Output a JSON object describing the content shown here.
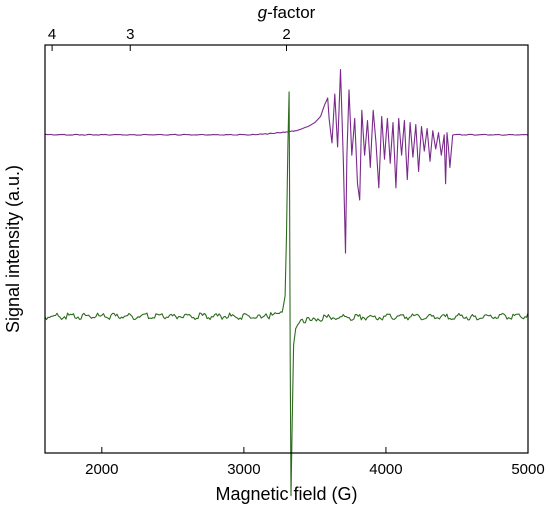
{
  "chart_data": {
    "type": "line",
    "xlabel": "Magnetic field (G)",
    "ylabel": "Signal intensity (a.u.)",
    "xlim": [
      1600,
      5000
    ],
    "x_ticks": [
      2000,
      3000,
      4000,
      5000
    ],
    "top_axis": {
      "title_italic": "g",
      "title_rest": "-factor",
      "ticks": [
        {
          "label": "4",
          "g": 4
        },
        {
          "label": "3",
          "g": 3
        },
        {
          "label": "2",
          "g": 2
        }
      ],
      "conversion_constant_G": 6600
    },
    "y_ticks_labeled": false,
    "grid": false,
    "series": [
      {
        "color": "#7a2a8c",
        "baseline": 0.78,
        "points": [
          [
            1600,
            0
          ],
          [
            3050,
            0
          ],
          [
            3150,
            0.002
          ],
          [
            3250,
            0.005
          ],
          [
            3300,
            0.006
          ],
          [
            3360,
            0.01
          ],
          [
            3400,
            0.014
          ],
          [
            3450,
            0.02
          ],
          [
            3500,
            0.03
          ],
          [
            3540,
            0.045
          ],
          [
            3570,
            0.075
          ],
          [
            3590,
            0.09
          ],
          [
            3600,
            0.04
          ],
          [
            3620,
            -0.02
          ],
          [
            3640,
            0.1
          ],
          [
            3660,
            -0.03
          ],
          [
            3680,
            0.16
          ],
          [
            3700,
            -0.06
          ],
          [
            3715,
            -0.29
          ],
          [
            3725,
            -0.05
          ],
          [
            3740,
            0.11
          ],
          [
            3760,
            -0.05
          ],
          [
            3780,
            0.04
          ],
          [
            3800,
            -0.12
          ],
          [
            3815,
            -0.16
          ],
          [
            3830,
            0.06
          ],
          [
            3850,
            -0.05
          ],
          [
            3870,
            0.035
          ],
          [
            3890,
            -0.08
          ],
          [
            3910,
            0.06
          ],
          [
            3930,
            -0.02
          ],
          [
            3950,
            -0.13
          ],
          [
            3970,
            0.045
          ],
          [
            3990,
            -0.06
          ],
          [
            4010,
            0.04
          ],
          [
            4030,
            -0.07
          ],
          [
            4050,
            0.03
          ],
          [
            4070,
            -0.13
          ],
          [
            4090,
            0.04
          ],
          [
            4110,
            -0.05
          ],
          [
            4130,
            0.035
          ],
          [
            4150,
            -0.11
          ],
          [
            4170,
            0.03
          ],
          [
            4190,
            -0.055
          ],
          [
            4210,
            0.025
          ],
          [
            4230,
            -0.09
          ],
          [
            4250,
            0.02
          ],
          [
            4270,
            -0.04
          ],
          [
            4290,
            0.015
          ],
          [
            4310,
            -0.065
          ],
          [
            4330,
            0.01
          ],
          [
            4350,
            -0.035
          ],
          [
            4370,
            0.005
          ],
          [
            4390,
            -0.05
          ],
          [
            4410,
            0.0
          ],
          [
            4420,
            -0.12
          ],
          [
            4430,
            0.005
          ],
          [
            4440,
            -0.03
          ],
          [
            4450,
            -0.08
          ],
          [
            4470,
            0.0
          ],
          [
            5000,
            0
          ]
        ]
      },
      {
        "color": "#2e6b1f",
        "baseline": 0.335,
        "points": [
          [
            1600,
            0
          ],
          [
            3100,
            0
          ],
          [
            3200,
            0.002
          ],
          [
            3250,
            0.005
          ],
          [
            3270,
            0.01
          ],
          [
            3290,
            0.05
          ],
          [
            3300,
            0.2
          ],
          [
            3310,
            0.42
          ],
          [
            3318,
            0.55
          ],
          [
            3322,
            0.3
          ],
          [
            3326,
            -0.1
          ],
          [
            3332,
            -0.44
          ],
          [
            3340,
            -0.26
          ],
          [
            3350,
            -0.07
          ],
          [
            3365,
            -0.03
          ],
          [
            3380,
            -0.02
          ],
          [
            3400,
            -0.012
          ],
          [
            3500,
            -0.005
          ],
          [
            3700,
            -0.002
          ],
          [
            5000,
            0
          ]
        ]
      }
    ]
  }
}
